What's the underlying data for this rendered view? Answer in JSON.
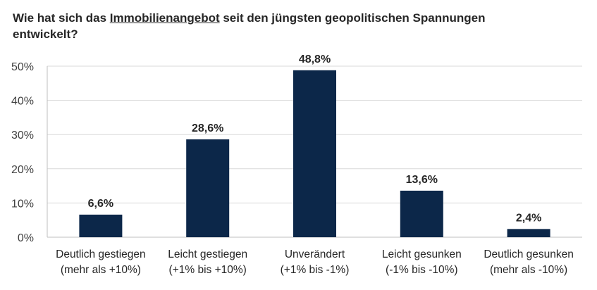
{
  "chart_data": {
    "type": "bar",
    "title": {
      "before": "Wie hat sich das ",
      "underlined": "Immobilienangebot",
      "after": " seit den jüngsten geopolitischen Spannungen entwickelt?"
    },
    "categories": [
      [
        "Deutlich gestiegen",
        "(mehr als +10%)"
      ],
      [
        "Leicht gestiegen",
        "(+1% bis +10%)"
      ],
      [
        "Unverändert",
        "(+1% bis -1%)"
      ],
      [
        "Leicht gesunken",
        "(-1% bis -10%)"
      ],
      [
        "Deutlich gesunken",
        "(mehr als -10%)"
      ]
    ],
    "values": [
      6.6,
      28.6,
      48.8,
      13.6,
      2.4
    ],
    "data_labels": [
      "6,6%",
      "28,6%",
      "48,8%",
      "13,6%",
      "2,4%"
    ],
    "ylim": [
      0,
      50
    ],
    "yticks": [
      0,
      10,
      20,
      30,
      40,
      50
    ],
    "ytick_labels": [
      "0%",
      "10%",
      "20%",
      "30%",
      "40%",
      "50%"
    ],
    "grid": true,
    "legend": "none",
    "colors": {
      "bar": "#0c2749",
      "grid": "#d9d9d9",
      "axis": "#bfbfbf"
    }
  }
}
